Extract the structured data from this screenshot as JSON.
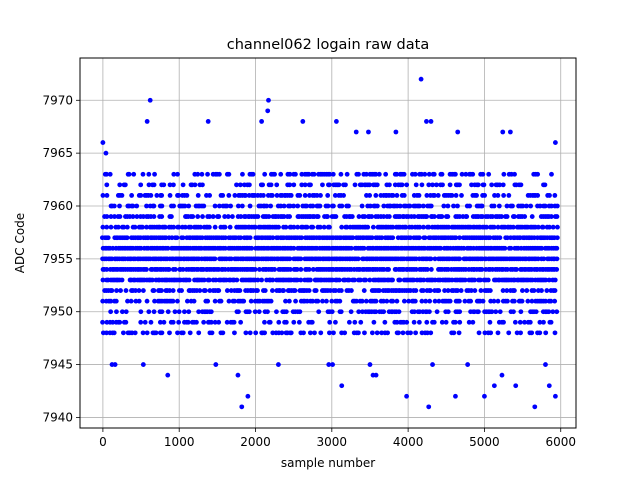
{
  "chart_data": {
    "type": "scatter",
    "title": "channel062 logain raw data",
    "xlabel": "sample number",
    "ylabel": "ADC Code",
    "xlim": [
      -300,
      6200
    ],
    "ylim": [
      7939,
      7974
    ],
    "xticks": [
      0,
      1000,
      2000,
      3000,
      4000,
      5000,
      6000
    ],
    "yticks": [
      7940,
      7945,
      7950,
      7955,
      7960,
      7965,
      7970
    ],
    "grid": true,
    "legend": "none",
    "marker_color": "#0000ff",
    "series": [
      {
        "x_range": [
          0,
          5950
        ],
        "sample_step": 25,
        "dense_band": [
          7948,
          7963
        ],
        "points": [
          {
            "x": 620,
            "y": 7970
          },
          {
            "x": 2170,
            "y": 7970
          },
          {
            "x": 2160,
            "y": 7969
          },
          {
            "x": 4170,
            "y": 7972
          },
          {
            "x": 0,
            "y": 7966
          },
          {
            "x": 40,
            "y": 7965
          },
          {
            "x": 580,
            "y": 7968
          },
          {
            "x": 2080,
            "y": 7968
          },
          {
            "x": 2620,
            "y": 7968
          },
          {
            "x": 3060,
            "y": 7968
          },
          {
            "x": 4240,
            "y": 7968
          },
          {
            "x": 4300,
            "y": 7968
          },
          {
            "x": 1380,
            "y": 7968
          },
          {
            "x": 5240,
            "y": 7967
          },
          {
            "x": 5340,
            "y": 7967
          },
          {
            "x": 5930,
            "y": 7966
          },
          {
            "x": 4650,
            "y": 7967
          },
          {
            "x": 3840,
            "y": 7967
          },
          {
            "x": 3320,
            "y": 7967
          },
          {
            "x": 3480,
            "y": 7967
          },
          {
            "x": 850,
            "y": 7944
          },
          {
            "x": 1770,
            "y": 7944
          },
          {
            "x": 1820,
            "y": 7941
          },
          {
            "x": 1900,
            "y": 7942
          },
          {
            "x": 3130,
            "y": 7943
          },
          {
            "x": 3540,
            "y": 7944
          },
          {
            "x": 3580,
            "y": 7944
          },
          {
            "x": 3980,
            "y": 7942
          },
          {
            "x": 4270,
            "y": 7941
          },
          {
            "x": 4620,
            "y": 7942
          },
          {
            "x": 5000,
            "y": 7942
          },
          {
            "x": 5130,
            "y": 7943
          },
          {
            "x": 5230,
            "y": 7944
          },
          {
            "x": 5410,
            "y": 7943
          },
          {
            "x": 5660,
            "y": 7941
          },
          {
            "x": 5850,
            "y": 7943
          },
          {
            "x": 5930,
            "y": 7942
          },
          {
            "x": 120,
            "y": 7945
          },
          {
            "x": 160,
            "y": 7945
          },
          {
            "x": 530,
            "y": 7945
          },
          {
            "x": 1480,
            "y": 7945
          },
          {
            "x": 2300,
            "y": 7945
          },
          {
            "x": 2960,
            "y": 7945
          },
          {
            "x": 3010,
            "y": 7945
          },
          {
            "x": 3500,
            "y": 7945
          },
          {
            "x": 4320,
            "y": 7945
          },
          {
            "x": 4780,
            "y": 7945
          },
          {
            "x": 5800,
            "y": 7945
          }
        ]
      }
    ]
  }
}
